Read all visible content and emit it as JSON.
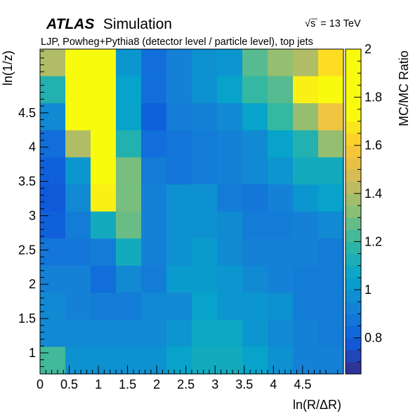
{
  "header": {
    "experiment": "ATLAS",
    "label": "Simulation",
    "energy": "= 13 TeV",
    "energy_symbol": "√s",
    "subtitle": "LJP, Powheg+Pythia8 (detector level / particle level), top jets"
  },
  "chart_data": {
    "type": "heatmap",
    "xlabel": "ln(R/ΔR)",
    "ylabel": "ln(1/z)",
    "zlabel": "MC/MC Ratio",
    "x_edges": [
      0,
      0.4333,
      0.8667,
      1.3,
      1.7333,
      2.1667,
      2.6,
      3.0333,
      3.4667,
      3.9,
      4.3333,
      4.7667,
      5.2
    ],
    "y_edges": [
      0.693,
      1.0877,
      1.4824,
      1.877,
      2.2717,
      2.6664,
      3.0611,
      3.4558,
      3.8504,
      4.2451,
      4.6398,
      5.0345,
      5.4292
    ],
    "x_ticks": [
      0,
      0.5,
      1,
      1.5,
      2,
      2.5,
      3,
      3.5,
      4,
      4.5
    ],
    "x_tick_labels": [
      "0",
      "0.5",
      "1",
      "1.5",
      "2",
      "2.5",
      "3",
      "3.5",
      "4",
      "4.5"
    ],
    "y_ticks": [
      1,
      1.5,
      2,
      2.5,
      3,
      3.5,
      4,
      4.5
    ],
    "y_tick_labels": [
      "1",
      "1.5",
      "2",
      "2.5",
      "3",
      "3.5",
      "4",
      "4.5"
    ],
    "z_range": [
      0.65,
      2.0
    ],
    "z_ticks": [
      0.8,
      1,
      1.2,
      1.4,
      1.6,
      1.8,
      2
    ],
    "z_tick_labels": [
      "0.8",
      "1",
      "1.2",
      "1.4",
      "1.6",
      "1.8",
      "2"
    ],
    "values": [
      [
        1.4,
        2.0,
        2.0,
        1.0,
        0.85,
        0.92,
        0.98,
        1.0,
        1.25,
        1.35,
        1.4,
        1.65
      ],
      [
        1.15,
        2.0,
        2.0,
        1.05,
        0.85,
        0.92,
        0.98,
        1.05,
        1.2,
        1.25,
        1.7,
        1.9
      ],
      [
        0.95,
        1.9,
        2.0,
        1.05,
        0.8,
        0.9,
        0.92,
        0.95,
        1.05,
        1.2,
        1.35,
        1.55
      ],
      [
        0.85,
        1.4,
        2.0,
        1.15,
        0.85,
        0.88,
        0.9,
        0.92,
        0.95,
        1.05,
        1.15,
        1.35
      ],
      [
        0.8,
        1.0,
        2.0,
        1.3,
        0.9,
        0.88,
        0.9,
        0.92,
        0.95,
        1.0,
        1.1,
        1.1
      ],
      [
        0.78,
        0.95,
        1.7,
        1.3,
        0.92,
        0.98,
        0.98,
        0.9,
        0.88,
        0.92,
        1.0,
        1.05
      ],
      [
        0.8,
        0.9,
        1.1,
        1.28,
        0.92,
        0.98,
        0.98,
        0.96,
        0.9,
        0.9,
        0.92,
        0.95
      ],
      [
        0.88,
        0.88,
        0.9,
        1.1,
        0.92,
        0.98,
        1.02,
        0.96,
        0.92,
        0.92,
        0.92,
        0.9
      ],
      [
        0.92,
        0.92,
        0.85,
        0.95,
        0.9,
        1.02,
        1.02,
        1.0,
        0.95,
        0.92,
        0.9,
        0.9
      ],
      [
        0.95,
        0.92,
        0.9,
        0.9,
        0.95,
        0.95,
        1.05,
        1.0,
        1.0,
        0.98,
        0.9,
        0.9
      ],
      [
        0.95,
        0.95,
        0.95,
        0.95,
        0.95,
        1.0,
        1.08,
        1.08,
        1.0,
        0.95,
        0.92,
        0.9
      ],
      [
        1.22,
        0.98,
        0.98,
        0.98,
        0.98,
        1.05,
        1.1,
        1.1,
        1.05,
        0.98,
        0.92,
        0.92
      ]
    ],
    "grid": false,
    "legend": "color-bar-right"
  }
}
